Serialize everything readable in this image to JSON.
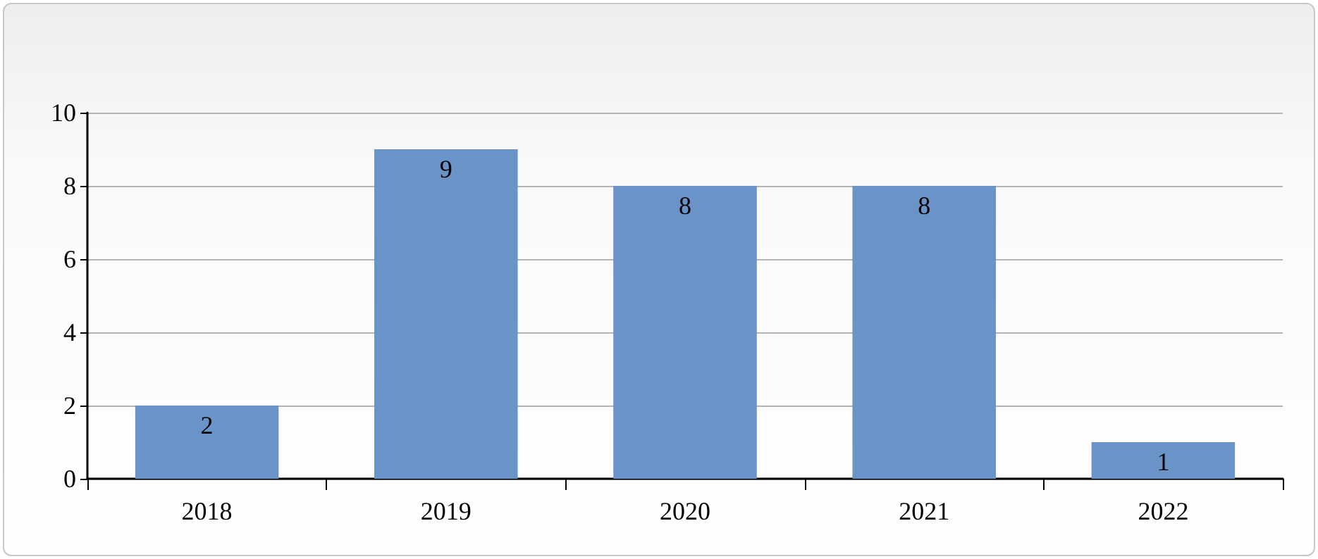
{
  "chart_data": {
    "type": "bar",
    "categories": [
      "2018",
      "2019",
      "2020",
      "2021",
      "2022"
    ],
    "values": [
      2,
      9,
      8,
      8,
      1
    ],
    "color": "#6a93c8",
    "ylim": [
      0,
      10
    ],
    "yticks": [
      0,
      2,
      4,
      6,
      8,
      10
    ],
    "grid": "y",
    "data_labels": true
  }
}
